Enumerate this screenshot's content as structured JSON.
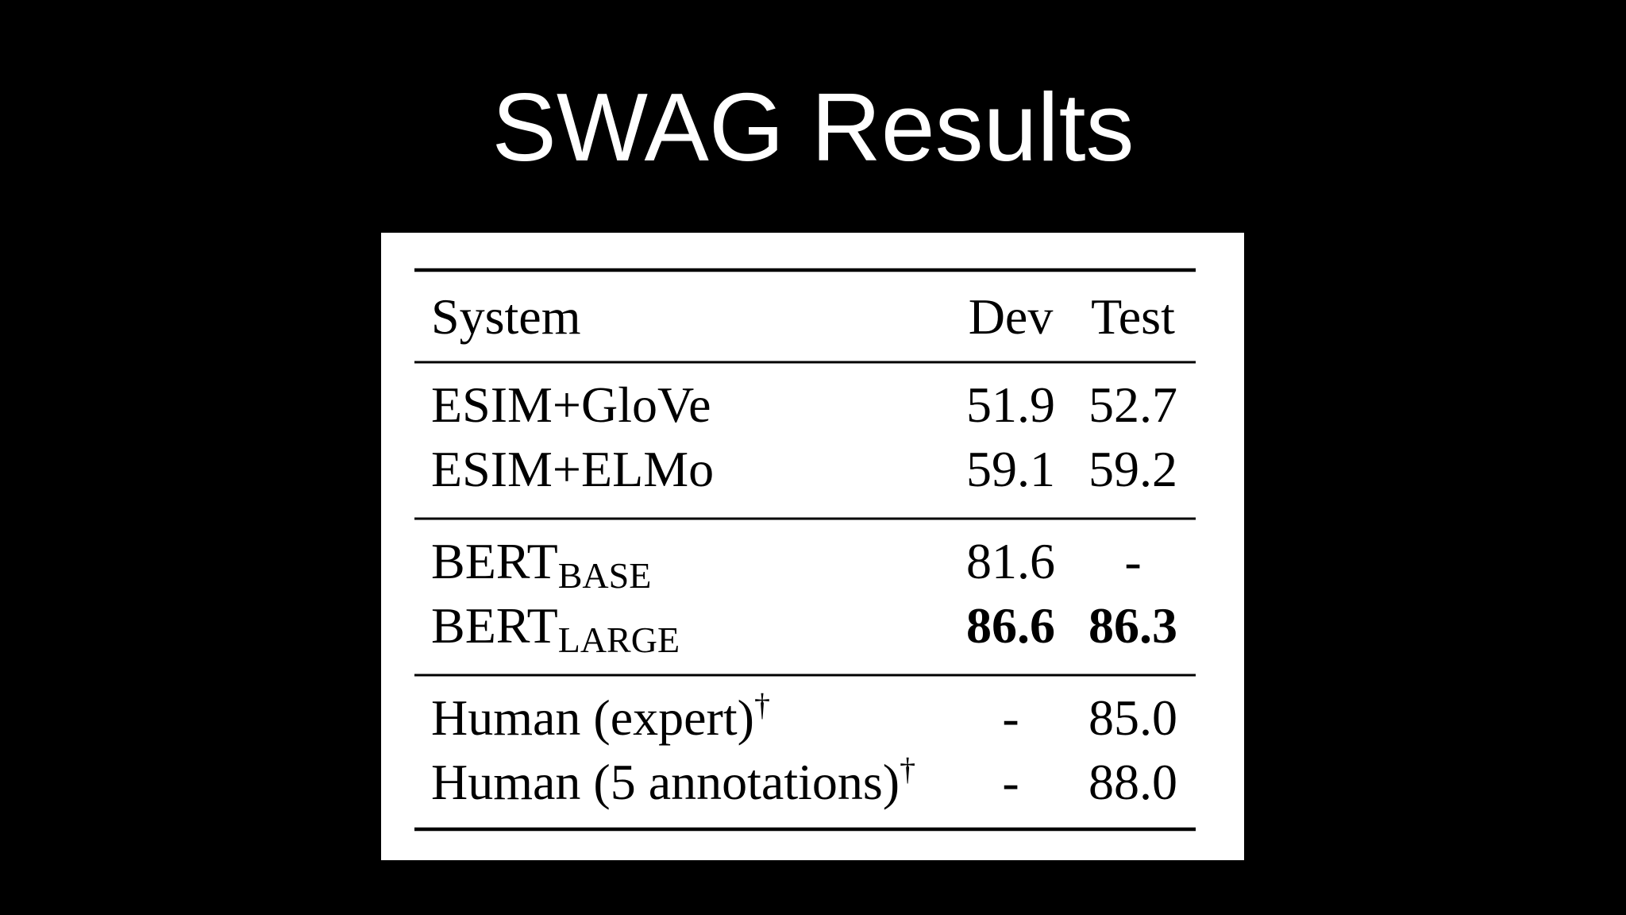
{
  "header": {
    "title": "SWAG Results"
  },
  "table": {
    "columns": [
      "System",
      "Dev",
      "Test"
    ],
    "groups": [
      {
        "rows": [
          {
            "system": "ESIM+GloVe",
            "dev": "51.9",
            "test": "52.7"
          },
          {
            "system": "ESIM+ELMo",
            "dev": "59.1",
            "test": "59.2"
          }
        ]
      },
      {
        "rows": [
          {
            "system": "BERT",
            "subscript": "BASE",
            "dev": "81.6",
            "test": "-"
          },
          {
            "system": "BERT",
            "subscript": "LARGE",
            "dev": "86.6",
            "test": "86.3",
            "bold": true
          }
        ]
      },
      {
        "rows": [
          {
            "system": "Human (expert)",
            "superscript": "†",
            "dev": "-",
            "test": "85.0"
          },
          {
            "system": "Human (5 annotations)",
            "superscript": "†",
            "dev": "-",
            "test": "88.0"
          }
        ]
      }
    ]
  }
}
